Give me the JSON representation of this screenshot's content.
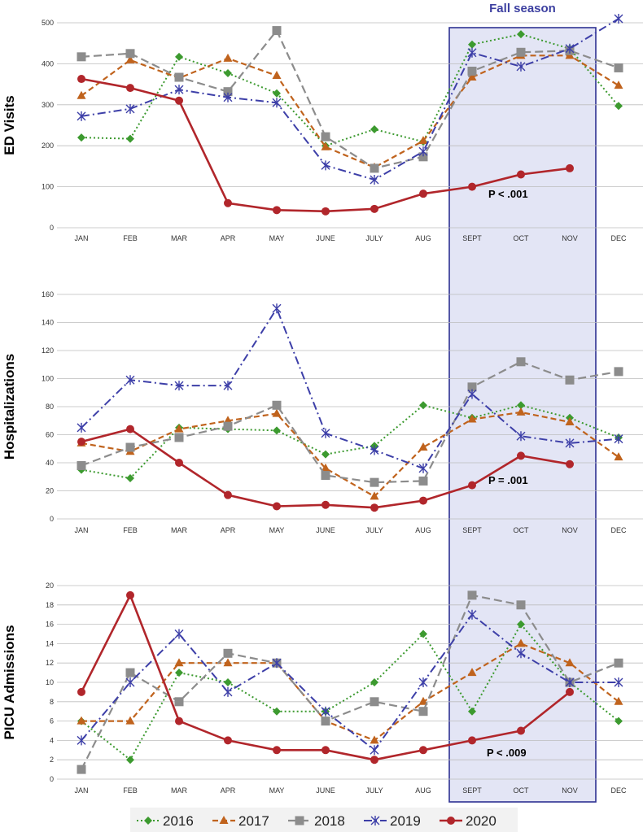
{
  "colors": {
    "2016": "#3c9a2f",
    "2017": "#c0631d",
    "2018": "#8c8c8c",
    "2019": "#3d3fa8",
    "2020": "#b1262b",
    "highlight_fill": "#d9dcf1",
    "highlight_border": "#2e3192",
    "season_label": "#3c3fa0",
    "grid": "#bdbdbd",
    "legend_bg": "#f2f2f2"
  },
  "highlight": {
    "label": "Fall season",
    "start": "SEPT",
    "end": "NOV"
  },
  "legend": [
    "2016",
    "2017",
    "2018",
    "2019",
    "2020"
  ],
  "chart_data": [
    {
      "type": "line",
      "ylabel": "ED Visits",
      "ylim": [
        0,
        500
      ],
      "yticks": [
        "0",
        "100",
        "200",
        "300",
        "400",
        "500"
      ],
      "categories": [
        "JAN",
        "FEB",
        "MAR",
        "APR",
        "MAY",
        "JUNE",
        "JULY",
        "AUG",
        "SEPT",
        "OCT",
        "NOV",
        "DEC"
      ],
      "annotation": "P < .001",
      "series": [
        {
          "name": "2016",
          "values": [
            220,
            217,
            417,
            377,
            328,
            200,
            240,
            210,
            447,
            472,
            437,
            297
          ]
        },
        {
          "name": "2017",
          "values": [
            322,
            409,
            365,
            413,
            371,
            197,
            147,
            212,
            367,
            420,
            420,
            347
          ]
        },
        {
          "name": "2018",
          "values": [
            417,
            425,
            367,
            332,
            481,
            222,
            145,
            173,
            382,
            428,
            432,
            390
          ]
        },
        {
          "name": "2019",
          "values": [
            272,
            290,
            337,
            318,
            305,
            152,
            117,
            186,
            427,
            393,
            437,
            510
          ]
        },
        {
          "name": "2020",
          "values": [
            363,
            341,
            310,
            60,
            43,
            40,
            46,
            83,
            100,
            130,
            145,
            null
          ]
        }
      ]
    },
    {
      "type": "line",
      "ylabel": "Hospitalizations",
      "ylim": [
        0,
        160
      ],
      "yticks": [
        "0",
        "20",
        "40",
        "60",
        "80",
        "100",
        "120",
        "140",
        "160"
      ],
      "categories": [
        "JAN",
        "FEB",
        "MAR",
        "APR",
        "MAY",
        "JUNE",
        "JULY",
        "AUG",
        "SEPT",
        "OCT",
        "NOV",
        "DEC"
      ],
      "annotation": "P = .001",
      "series": [
        {
          "name": "2016",
          "values": [
            35,
            29,
            65,
            64,
            63,
            46,
            52,
            81,
            72,
            81,
            72,
            58
          ]
        },
        {
          "name": "2017",
          "values": [
            54,
            48,
            64,
            70,
            75,
            36,
            16,
            51,
            71,
            76,
            69,
            44
          ]
        },
        {
          "name": "2018",
          "values": [
            38,
            51,
            58,
            66,
            81,
            31,
            26,
            27,
            94,
            112,
            99,
            105
          ]
        },
        {
          "name": "2019",
          "values": [
            65,
            99,
            95,
            95,
            150,
            61,
            49,
            36,
            89,
            59,
            54,
            57
          ]
        },
        {
          "name": "2020",
          "values": [
            55,
            64,
            40,
            17,
            9,
            10,
            8,
            13,
            24,
            45,
            39,
            null
          ]
        }
      ]
    },
    {
      "type": "line",
      "ylabel": "PICU Admissions",
      "ylim": [
        0,
        20
      ],
      "yticks": [
        "0",
        "2",
        "4",
        "6",
        "8",
        "10",
        "12",
        "14",
        "16",
        "18",
        "20"
      ],
      "categories": [
        "JAN",
        "FEB",
        "MAR",
        "APR",
        "MAY",
        "JUNE",
        "JULY",
        "AUG",
        "SEPT",
        "OCT",
        "NOV",
        "DEC"
      ],
      "annotation": "P < .009",
      "series": [
        {
          "name": "2016",
          "values": [
            6,
            2,
            11,
            10,
            7,
            7,
            10,
            15,
            7,
            16,
            10,
            6
          ]
        },
        {
          "name": "2017",
          "values": [
            6,
            6,
            12,
            12,
            12,
            6,
            4,
            8,
            11,
            14,
            12,
            8
          ]
        },
        {
          "name": "2018",
          "values": [
            1,
            11,
            8,
            13,
            12,
            6,
            8,
            7,
            19,
            18,
            10,
            12
          ]
        },
        {
          "name": "2019",
          "values": [
            4,
            10,
            15,
            9,
            12,
            7,
            3,
            10,
            17,
            13,
            10,
            10
          ]
        },
        {
          "name": "2020",
          "values": [
            9,
            19,
            6,
            4,
            3,
            3,
            2,
            3,
            4,
            5,
            9,
            null
          ]
        }
      ]
    }
  ]
}
